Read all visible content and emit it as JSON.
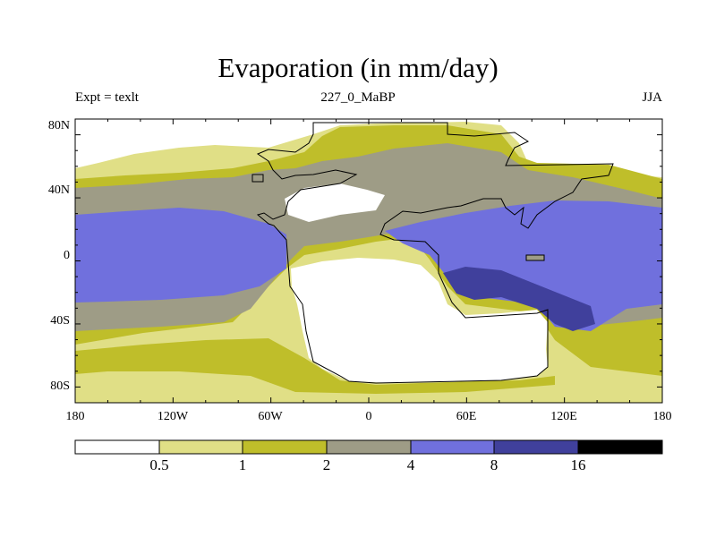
{
  "title": "Evaporation (in mm/day)",
  "left_label": "Expt = texlt",
  "center_label": "227_0_MaBP",
  "right_label": "JJA",
  "colors": {
    "lt_0_5": "#ffffff",
    "c_0_5_1": "#e0df86",
    "c_1_2": "#bfbe2a",
    "c_2_4": "#9e9c86",
    "c_4_8": "#7070dd",
    "c_8_16": "#40409c",
    "gt_16": "#000000",
    "coast": "#000000"
  },
  "axes": {
    "y_ticks": [
      "80N",
      "40N",
      "0",
      "40S",
      "80S"
    ],
    "x_ticks": [
      "180",
      "120W",
      "60W",
      "0",
      "60E",
      "120E",
      "180"
    ]
  },
  "colorbar": {
    "levels": [
      "0.5",
      "1",
      "2",
      "4",
      "8",
      "16"
    ]
  }
}
